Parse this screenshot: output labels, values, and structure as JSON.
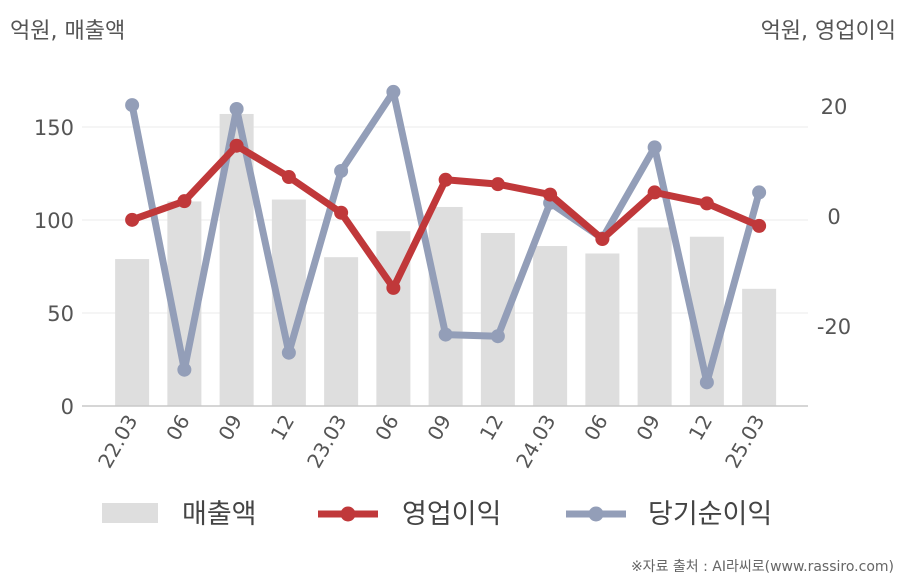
{
  "source": "※자료 출처 : AI라씨로(www.rassiro.com)",
  "chart_data": {
    "type": "bar+line",
    "left_axis_title": "억원, 매출액",
    "right_axis_title": "억원, 영업이익",
    "categories": [
      "22.03",
      "06",
      "09",
      "12",
      "23.03",
      "06",
      "09",
      "12",
      "24.03",
      "06",
      "09",
      "12",
      "25.03"
    ],
    "left_ylim": [
      0,
      170
    ],
    "left_ticks": [
      "150",
      "100",
      "50",
      "0"
    ],
    "left_tick_values": [
      150,
      100,
      50,
      0
    ],
    "right_ylim": [
      -35,
      30
    ],
    "right_ticks": [
      "20",
      "0",
      "-20"
    ],
    "right_tick_values": [
      20,
      0,
      -20
    ],
    "grid": "horizontal",
    "legend_position": "bottom",
    "series": [
      {
        "name": "매출액",
        "kind": "bar",
        "axis": "left",
        "color": "#dedede",
        "values": [
          79,
          110,
          157,
          111,
          80,
          94,
          107,
          93,
          86,
          82,
          96,
          91,
          63
        ]
      },
      {
        "name": "영업이익",
        "kind": "line",
        "axis": "right",
        "color": "#c0383a",
        "values": [
          -0.7,
          2.7,
          12.8,
          7.1,
          0.6,
          -13.1,
          6.6,
          5.8,
          3.9,
          -4.2,
          4.3,
          2.3,
          -1.8
        ]
      },
      {
        "name": "당기순이익",
        "kind": "line",
        "axis": "right",
        "color": "#939eb8",
        "values": [
          20.2,
          -28.0,
          19.5,
          -24.9,
          8.2,
          22.6,
          -21.6,
          -21.9,
          2.4,
          -4.1,
          12.5,
          -30.3,
          4.3
        ]
      }
    ]
  }
}
